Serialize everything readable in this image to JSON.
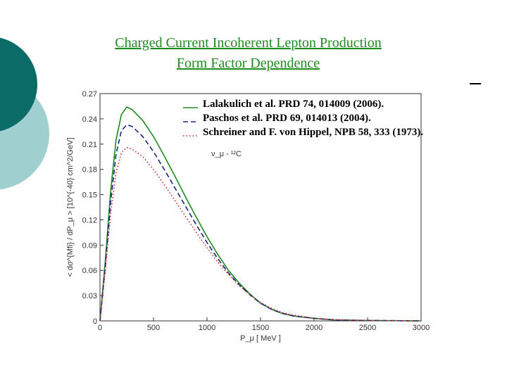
{
  "slide": {
    "title_line1": "Charged Current Incoherent Lepton Production",
    "title_line2": "Form Factor Dependence",
    "colors": {
      "title": "#1f8a1f",
      "circle_dark": "#0b6b66",
      "circle_light": "#9fcfcf"
    }
  },
  "chart_data": {
    "type": "line",
    "xlabel": "P_μ [ MeV ]",
    "ylabel": "< dσ^{Mfi} / dP_μ > [10^{-40} cm^2/GeV]",
    "annotation": "ν_μ - ¹²C",
    "xlim": [
      0,
      3000
    ],
    "ylim": [
      0,
      0.27
    ],
    "xticks": [
      0,
      500,
      1000,
      1500,
      2000,
      2500,
      3000
    ],
    "yticks": [
      0,
      0.03,
      0.06,
      0.09,
      0.12,
      0.15,
      0.18,
      0.21,
      0.24,
      0.27
    ],
    "xtick_labels": [
      "0",
      "500",
      "1000",
      "1500",
      "2000",
      "2500",
      "3000"
    ],
    "ytick_labels": [
      "0",
      "0.03",
      "0.06",
      "0.09",
      "0.12",
      "0.15",
      "0.18",
      "0.21",
      "0.24",
      "0.27"
    ],
    "legend_position": "top-right",
    "series": [
      {
        "name": "Lalakulich et al. PRD 74, 014009 (2006).",
        "style": "solid",
        "color": "#1f8a1f",
        "x": [
          0,
          50,
          100,
          150,
          200,
          250,
          300,
          400,
          500,
          600,
          700,
          800,
          900,
          1000,
          1100,
          1200,
          1300,
          1400,
          1500,
          1600,
          1700,
          1800,
          2000,
          2200,
          2500,
          3000
        ],
        "y": [
          0,
          0.072,
          0.155,
          0.215,
          0.245,
          0.254,
          0.251,
          0.238,
          0.219,
          0.196,
          0.172,
          0.147,
          0.123,
          0.1,
          0.079,
          0.06,
          0.045,
          0.032,
          0.021,
          0.014,
          0.009,
          0.006,
          0.003,
          0.001,
          0.0005,
          0
        ]
      },
      {
        "name": "Paschos et al. PRD 69, 014013 (2004).",
        "style": "dashed",
        "color": "#1a237e",
        "x": [
          0,
          50,
          100,
          150,
          200,
          250,
          300,
          400,
          500,
          600,
          700,
          800,
          900,
          1000,
          1100,
          1200,
          1300,
          1400,
          1500,
          1600,
          1700,
          1800,
          2000,
          2200,
          2500,
          3000
        ],
        "y": [
          0,
          0.066,
          0.142,
          0.198,
          0.226,
          0.233,
          0.231,
          0.219,
          0.201,
          0.18,
          0.158,
          0.136,
          0.114,
          0.093,
          0.074,
          0.057,
          0.043,
          0.031,
          0.021,
          0.014,
          0.009,
          0.006,
          0.003,
          0.001,
          0.0005,
          0
        ]
      },
      {
        "name": "Schreiner and F. von Hippel, NPB 58, 333 (1973).",
        "style": "dotted",
        "color": "#cc2222",
        "x": [
          0,
          50,
          100,
          150,
          200,
          250,
          300,
          400,
          500,
          600,
          700,
          800,
          900,
          1000,
          1100,
          1200,
          1300,
          1400,
          1500,
          1600,
          1700,
          1800,
          2000,
          2200,
          2500,
          3000
        ],
        "y": [
          0,
          0.06,
          0.128,
          0.176,
          0.2,
          0.206,
          0.204,
          0.195,
          0.18,
          0.162,
          0.143,
          0.124,
          0.105,
          0.087,
          0.07,
          0.055,
          0.042,
          0.031,
          0.022,
          0.015,
          0.01,
          0.007,
          0.003,
          0.0015,
          0.0005,
          0
        ]
      }
    ]
  }
}
